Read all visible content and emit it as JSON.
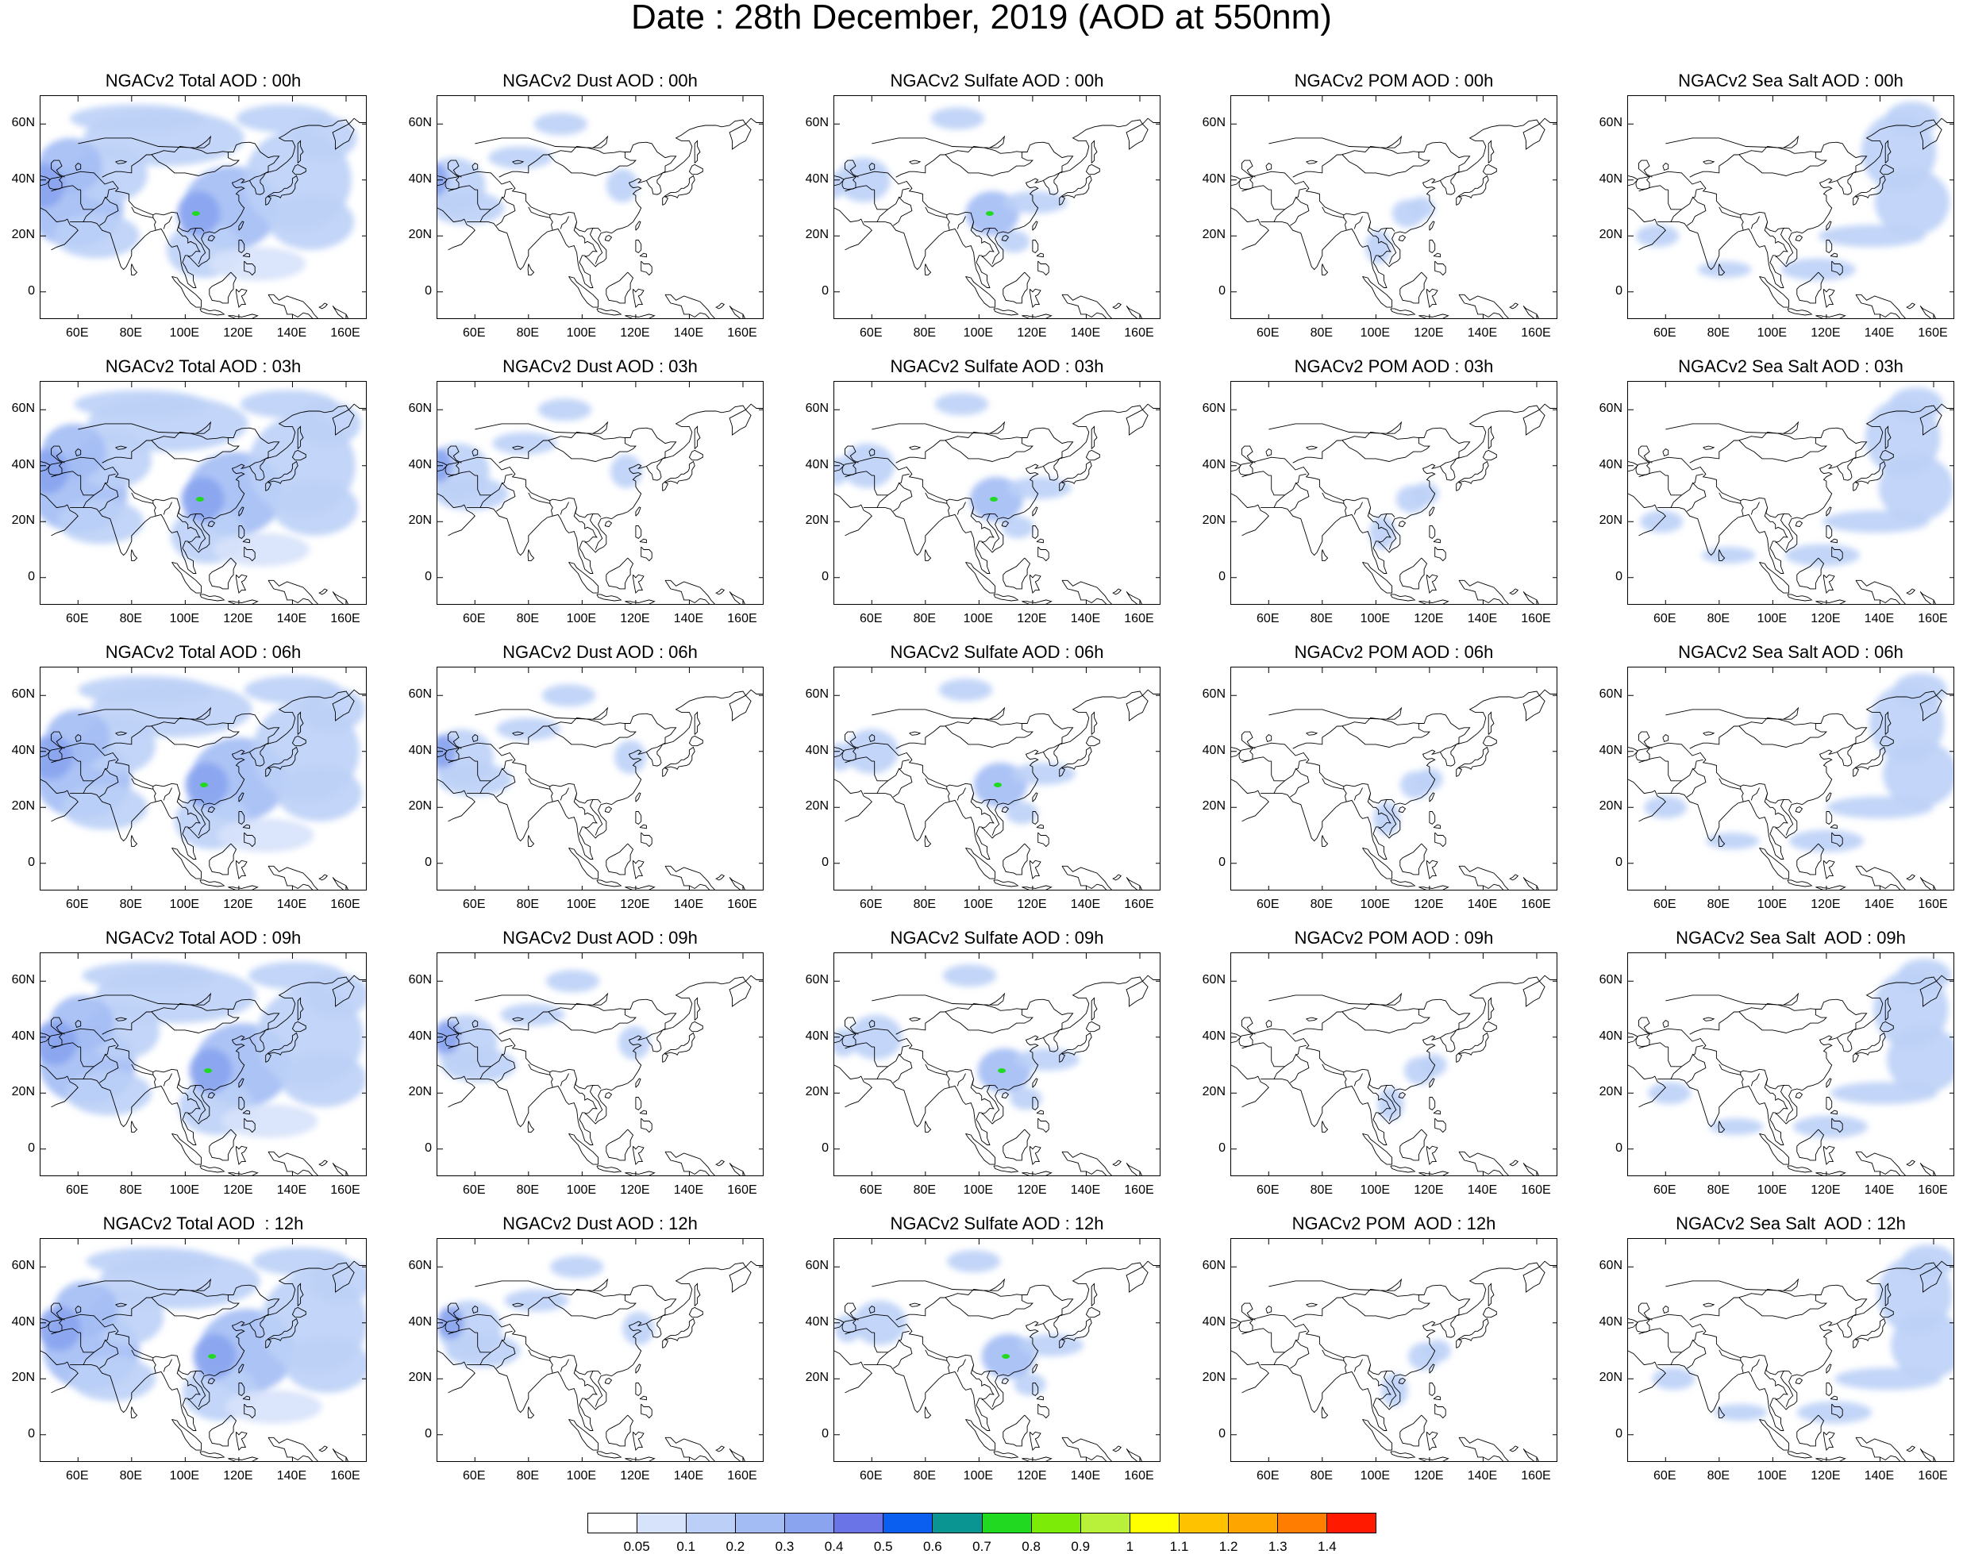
{
  "title": "Date : 28th December, 2019 (AOD at 550nm)",
  "lat_ticks": [
    "60N",
    "40N",
    "20N",
    "0"
  ],
  "lon_ticks": [
    "60E",
    "80E",
    "100E",
    "120E",
    "140E",
    "160E"
  ],
  "panels": [
    {
      "title": "NGACv2 Total AOD : 00h",
      "species": "total",
      "hour": "00h"
    },
    {
      "title": "NGACv2 Dust AOD : 00h",
      "species": "dust",
      "hour": "00h"
    },
    {
      "title": "NGACv2 Sulfate AOD : 00h",
      "species": "sulfate",
      "hour": "00h"
    },
    {
      "title": "NGACv2 POM AOD : 00h",
      "species": "pom",
      "hour": "00h"
    },
    {
      "title": "NGACv2 Sea Salt AOD : 00h",
      "species": "seasalt",
      "hour": "00h"
    },
    {
      "title": "NGACv2 Total AOD : 03h",
      "species": "total",
      "hour": "03h"
    },
    {
      "title": "NGACv2 Dust AOD : 03h",
      "species": "dust",
      "hour": "03h"
    },
    {
      "title": "NGACv2 Sulfate AOD : 03h",
      "species": "sulfate",
      "hour": "03h"
    },
    {
      "title": "NGACv2 POM AOD : 03h",
      "species": "pom",
      "hour": "03h"
    },
    {
      "title": "NGACv2 Sea Salt AOD : 03h",
      "species": "seasalt",
      "hour": "03h"
    },
    {
      "title": "NGACv2 Total AOD : 06h",
      "species": "total",
      "hour": "06h"
    },
    {
      "title": "NGACv2 Dust AOD : 06h",
      "species": "dust",
      "hour": "06h"
    },
    {
      "title": "NGACv2 Sulfate AOD : 06h",
      "species": "sulfate",
      "hour": "06h"
    },
    {
      "title": "NGACv2 POM AOD : 06h",
      "species": "pom",
      "hour": "06h"
    },
    {
      "title": "NGACv2 Sea Salt AOD : 06h",
      "species": "seasalt",
      "hour": "06h"
    },
    {
      "title": "NGACv2 Total AOD : 09h",
      "species": "total",
      "hour": "09h"
    },
    {
      "title": "NGACv2 Dust AOD : 09h",
      "species": "dust",
      "hour": "09h"
    },
    {
      "title": "NGACv2 Sulfate AOD : 09h",
      "species": "sulfate",
      "hour": "09h"
    },
    {
      "title": "NGACv2 POM AOD : 09h",
      "species": "pom",
      "hour": "09h"
    },
    {
      "title": "NGACv2 Sea Salt  AOD : 09h",
      "species": "seasalt",
      "hour": "09h"
    },
    {
      "title": "NGACv2 Total AOD  : 12h",
      "species": "total",
      "hour": "12h"
    },
    {
      "title": "NGACv2 Dust AOD : 12h",
      "species": "dust",
      "hour": "12h"
    },
    {
      "title": "NGACv2 Sulfate AOD : 12h",
      "species": "sulfate",
      "hour": "12h"
    },
    {
      "title": "NGACv2 POM  AOD : 12h",
      "species": "pom",
      "hour": "12h"
    },
    {
      "title": "NGACv2 Sea Salt  AOD : 12h",
      "species": "seasalt",
      "hour": "12h"
    }
  ],
  "colorbar": {
    "labels": [
      "0.05",
      "0.1",
      "0.2",
      "0.3",
      "0.4",
      "0.5",
      "0.6",
      "0.7",
      "0.8",
      "0.9",
      "1",
      "1.1",
      "1.2",
      "1.3",
      "1.4"
    ],
    "colors": [
      "#ffffff",
      "#d7e2fb",
      "#bcd0f7",
      "#a3bdf4",
      "#8aa4f0",
      "#6a74e6",
      "#0a5ff0",
      "#0a9492",
      "#22d922",
      "#7ceb07",
      "#b9f03a",
      "#ffff00",
      "#ffc200",
      "#ffa500",
      "#ff7d00",
      "#ff1a00"
    ]
  },
  "map_colors": {
    "land_outline": "#000000",
    "low": "#d7e2fb",
    "mid": "#bcd0f7",
    "high": "#a3bdf4",
    "peak": "#8aa4f0",
    "hot": "#22d922"
  }
}
